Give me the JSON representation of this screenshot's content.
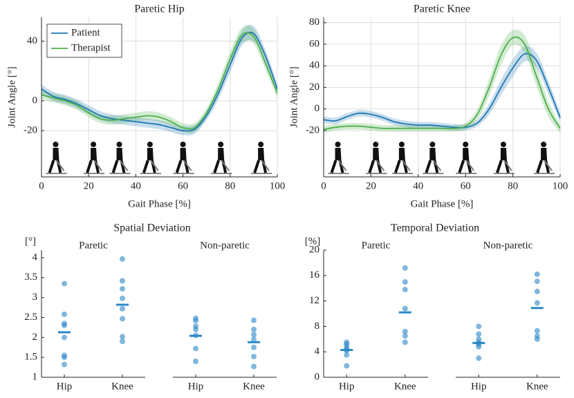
{
  "chart_data": [
    {
      "type": "line",
      "title": "Paretic Hip",
      "xlabel": "Gait Phase [%]",
      "ylabel": "Joint Angle [°]",
      "x": [
        0,
        5,
        10,
        15,
        20,
        25,
        30,
        35,
        40,
        45,
        50,
        55,
        60,
        65,
        70,
        75,
        80,
        85,
        90,
        95,
        100
      ],
      "xlim": [
        0,
        100
      ],
      "xticks": [
        0,
        20,
        40,
        60,
        80,
        100
      ],
      "ylim": [
        -51,
        56
      ],
      "yticks": [
        -20,
        0,
        40
      ],
      "grid": true,
      "legend": "upper left",
      "series": [
        {
          "name": "Patient",
          "color": "#1f77b4",
          "values": [
            8,
            3,
            1,
            -2,
            -6,
            -10,
            -12,
            -13,
            -14,
            -15,
            -16,
            -18,
            -20,
            -19,
            -10,
            5,
            24,
            42,
            45,
            30,
            8
          ],
          "error": [
            3,
            3,
            3,
            3,
            3,
            3,
            3,
            3,
            3,
            3,
            3,
            3,
            3,
            3,
            3,
            4,
            5,
            5,
            5,
            4,
            3
          ]
        },
        {
          "name": "Therapist",
          "color": "#4daf4a",
          "values": [
            4,
            2,
            0,
            -3,
            -8,
            -12,
            -13,
            -12,
            -11,
            -10,
            -11,
            -14,
            -18,
            -18,
            -8,
            8,
            28,
            44,
            43,
            25,
            5
          ],
          "error": [
            3,
            3,
            3,
            3,
            3,
            3,
            3,
            3,
            3,
            3,
            3,
            3,
            3,
            3,
            3,
            4,
            5,
            5,
            5,
            4,
            3
          ]
        }
      ]
    },
    {
      "type": "line",
      "title": "Paretic Knee",
      "xlabel": "Gait Phase [%]",
      "ylabel": "Joint Angle [°]",
      "x": [
        0,
        5,
        10,
        15,
        20,
        25,
        30,
        35,
        40,
        45,
        50,
        55,
        60,
        65,
        70,
        75,
        80,
        85,
        90,
        95,
        100
      ],
      "xlim": [
        0,
        100
      ],
      "xticks": [
        0,
        20,
        40,
        60,
        80,
        100
      ],
      "ylim": [
        -63,
        85
      ],
      "yticks": [
        -20,
        0,
        20,
        40,
        60,
        80
      ],
      "grid": true,
      "series": [
        {
          "color": "#1f77b4",
          "values": [
            -10,
            -11,
            -7,
            -4,
            -5,
            -8,
            -12,
            -14,
            -15,
            -15,
            -16,
            -17,
            -17,
            -13,
            0,
            20,
            38,
            51,
            45,
            20,
            -8
          ],
          "error": [
            3,
            3,
            3,
            3,
            3,
            3,
            3,
            3,
            3,
            3,
            3,
            3,
            3,
            3,
            5,
            7,
            8,
            7,
            7,
            6,
            4
          ]
        },
        {
          "color": "#4daf4a",
          "values": [
            -19,
            -17,
            -16,
            -16,
            -17,
            -18,
            -18,
            -18,
            -18,
            -18,
            -18,
            -18,
            -16,
            -5,
            20,
            50,
            66,
            60,
            30,
            0,
            -18
          ],
          "error": [
            3,
            3,
            3,
            3,
            3,
            3,
            3,
            3,
            3,
            3,
            3,
            3,
            3,
            5,
            8,
            9,
            7,
            8,
            9,
            7,
            4
          ]
        }
      ]
    },
    {
      "type": "strip",
      "title": "Spatial Deviation",
      "ylabel": "[°]",
      "color": "#2a87c8",
      "ylim": [
        1,
        4.19
      ],
      "yticks": [
        1,
        1.5,
        2,
        2.5,
        3,
        3.5,
        4
      ],
      "groups": [
        {
          "name": "Paretic",
          "categories": [
            "Hip",
            "Knee"
          ],
          "values": [
            [
              3.35,
              2.58,
              2.35,
              2.3,
              2.0,
              1.55,
              1.5,
              1.32
            ],
            [
              3.97,
              3.42,
              3.22,
              2.98,
              2.72,
              2.47,
              2.02,
              1.9
            ]
          ],
          "means": [
            2.13,
            2.82
          ]
        },
        {
          "name": "Non-paretic",
          "categories": [
            "Hip",
            "Knee"
          ],
          "values": [
            [
              2.48,
              2.42,
              2.28,
              2.2,
              2.05,
              1.72,
              1.4
            ],
            [
              2.43,
              2.2,
              2.07,
              1.95,
              1.75,
              1.52,
              1.27
            ]
          ],
          "means": [
            2.04,
            1.88
          ]
        }
      ]
    },
    {
      "type": "strip",
      "title": "Temporal Deviation",
      "ylabel": "[%]",
      "color": "#2a87c8",
      "ylim": [
        0,
        20
      ],
      "yticks": [
        0,
        4,
        8,
        12,
        16,
        20
      ],
      "groups": [
        {
          "name": "Paretic",
          "categories": [
            "Hip",
            "Knee"
          ],
          "values": [
            [
              5.5,
              5.2,
              4.8,
              4.4,
              4.2,
              3.5,
              1.8
            ],
            [
              17.2,
              15,
              13.8,
              10.8,
              7.2,
              6.5,
              5.5
            ]
          ],
          "means": [
            4.3,
            10.2
          ]
        },
        {
          "name": "Non-paretic",
          "categories": [
            "Hip",
            "Knee"
          ],
          "values": [
            [
              8,
              6.8,
              6,
              5.5,
              5.2,
              4.8,
              3.0
            ],
            [
              16.2,
              15.1,
              13.5,
              11.7,
              7.3,
              6.5,
              6.0
            ]
          ],
          "means": [
            5.4,
            10.9
          ]
        }
      ]
    }
  ]
}
